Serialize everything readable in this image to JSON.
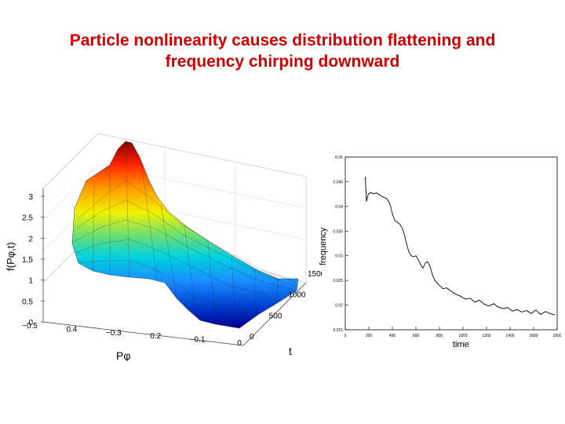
{
  "slide": {
    "title_line1": "Particle nonlinearity causes distribution flattening and",
    "title_line2": "frequency chirping downward"
  },
  "colors": {
    "title": "#cc0000",
    "surface_colormap": "jet",
    "line": "#000000"
  },
  "chart_data": [
    {
      "type": "surface",
      "zlabel": "f(Pφ,t)",
      "xlabel": "Pφ",
      "ylabel": "t",
      "z_ticks": [
        "0",
        "0.5",
        "1",
        "1.5",
        "2",
        "2.5",
        "3"
      ],
      "p_ticks": [
        "−0.5",
        "0.4",
        "−0.3",
        "0.2",
        "−0.1",
        "0"
      ],
      "t_ticks": [
        "0",
        "500",
        "1000",
        "1500"
      ],
      "zlim": [
        0,
        3
      ],
      "t_range": [
        0,
        1500
      ],
      "description_values": "distribution peaks near 3 at early time and flattens to near 0 at late time"
    },
    {
      "type": "line",
      "xlabel": "time",
      "ylabel": "frequency",
      "x_ticks": [
        "0",
        "200",
        "400",
        "600",
        "800",
        "1000",
        "1200",
        "1400",
        "1600",
        "1800"
      ],
      "y_ticks": [
        "0.015",
        "0.02",
        "0.025",
        "0.03",
        "0.035",
        "0.04",
        "0.045",
        "0.05"
      ],
      "xlim": [
        0,
        1800
      ],
      "ylim": [
        0.015,
        0.05
      ],
      "series": [
        {
          "x": [
            170,
            180,
            195,
            215,
            240,
            270,
            300,
            330,
            350,
            370,
            385,
            400,
            420,
            440,
            460,
            480,
            500,
            520,
            540,
            560,
            580,
            600,
            620,
            640,
            660,
            680,
            700,
            720,
            740,
            760,
            780,
            800,
            830,
            860,
            900,
            940,
            980,
            1020,
            1060,
            1100,
            1140,
            1180,
            1220,
            1260,
            1300,
            1340,
            1380,
            1420,
            1460,
            1500,
            1540,
            1580,
            1620,
            1660,
            1700,
            1740,
            1780
          ],
          "y": [
            0.046,
            0.041,
            0.0425,
            0.0428,
            0.0426,
            0.0427,
            0.0422,
            0.0418,
            0.0416,
            0.041,
            0.04,
            0.0385,
            0.0372,
            0.0368,
            0.0365,
            0.0358,
            0.0345,
            0.0325,
            0.0308,
            0.03,
            0.0298,
            0.03,
            0.0292,
            0.0282,
            0.0275,
            0.0285,
            0.0288,
            0.0278,
            0.0262,
            0.025,
            0.0245,
            0.024,
            0.0233,
            0.0235,
            0.0228,
            0.0222,
            0.0218,
            0.0212,
            0.0214,
            0.0206,
            0.021,
            0.0202,
            0.0198,
            0.0203,
            0.0196,
            0.0193,
            0.0195,
            0.0188,
            0.0191,
            0.0186,
            0.0189,
            0.0183,
            0.019,
            0.0181,
            0.0187,
            0.0183,
            0.018
          ]
        }
      ]
    }
  ]
}
